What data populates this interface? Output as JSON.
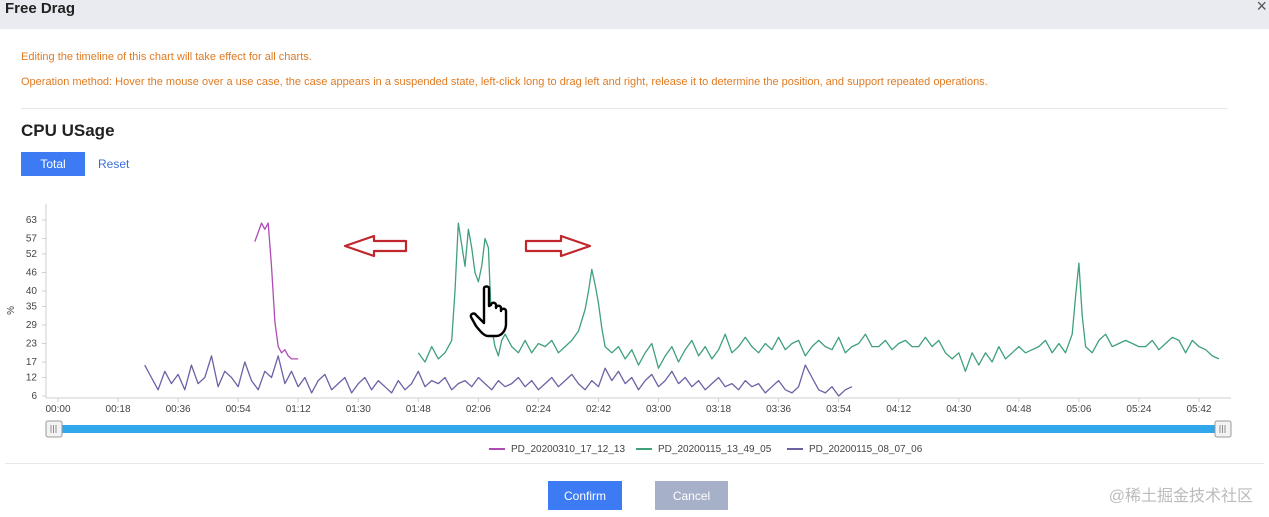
{
  "dialog": {
    "title": "Free Drag",
    "close_symbol": "×",
    "notes": [
      "Editing the timeline of this chart will take effect for all charts.",
      "Operation method: Hover the mouse over a use case, the case appears in a suspended state, left-click long to drag left and right, release it to determine the position, and support repeated operations."
    ],
    "note_color": "#e07b22",
    "section_title": "CPU USage",
    "buttons": {
      "total": "Total",
      "reset": "Reset",
      "confirm": "Confirm",
      "cancel": "Cancel"
    },
    "accent_color": "#3d7bf4",
    "watermark": "@稀土掘金技术社区"
  },
  "chart_data": {
    "type": "line",
    "title": "",
    "ylabel": "%",
    "xlabel": "",
    "yticks": [
      6,
      12,
      17,
      23,
      29,
      35,
      40,
      46,
      52,
      57,
      63
    ],
    "ylim": [
      6,
      63
    ],
    "xticks": [
      "00:00",
      "00:18",
      "00:36",
      "00:54",
      "01:12",
      "01:30",
      "01:48",
      "02:06",
      "02:24",
      "02:42",
      "03:00",
      "03:18",
      "03:36",
      "03:54",
      "04:12",
      "04:30",
      "04:48",
      "05:06",
      "05:24",
      "05:42"
    ],
    "xlim_minutes": [
      0,
      348
    ],
    "grid": false,
    "legend_position": "bottom",
    "series": [
      {
        "name": "PD_20200310_17_12_13",
        "color": "#b04bb5",
        "points": [
          [
            59,
            56
          ],
          [
            60,
            59
          ],
          [
            61,
            62
          ],
          [
            62,
            60
          ],
          [
            63,
            62
          ],
          [
            64,
            48
          ],
          [
            65,
            30
          ],
          [
            66,
            22
          ],
          [
            67,
            20
          ],
          [
            68,
            21
          ],
          [
            69,
            19
          ],
          [
            70,
            18
          ],
          [
            71,
            18
          ],
          [
            72,
            18
          ]
        ]
      },
      {
        "name": "PD_20200115_13_49_05",
        "color": "#3fa07a",
        "points": [
          [
            108,
            20
          ],
          [
            110,
            17
          ],
          [
            112,
            22
          ],
          [
            114,
            18
          ],
          [
            116,
            20
          ],
          [
            118,
            24
          ],
          [
            119,
            40
          ],
          [
            120,
            62
          ],
          [
            121,
            55
          ],
          [
            122,
            48
          ],
          [
            123,
            60
          ],
          [
            124,
            54
          ],
          [
            125,
            46
          ],
          [
            126,
            43
          ],
          [
            127,
            48
          ],
          [
            128,
            57
          ],
          [
            129,
            54
          ],
          [
            130,
            28
          ],
          [
            131,
            22
          ],
          [
            132,
            19
          ],
          [
            133,
            24
          ],
          [
            134,
            26
          ],
          [
            136,
            22
          ],
          [
            138,
            20
          ],
          [
            140,
            24
          ],
          [
            142,
            20
          ],
          [
            144,
            23
          ],
          [
            146,
            22
          ],
          [
            148,
            24
          ],
          [
            150,
            20
          ],
          [
            152,
            22
          ],
          [
            154,
            24
          ],
          [
            156,
            27
          ],
          [
            158,
            34
          ],
          [
            159,
            40
          ],
          [
            160,
            47
          ],
          [
            161,
            42
          ],
          [
            162,
            36
          ],
          [
            163,
            28
          ],
          [
            164,
            22
          ],
          [
            166,
            20
          ],
          [
            168,
            22
          ],
          [
            170,
            18
          ],
          [
            172,
            21
          ],
          [
            174,
            16
          ],
          [
            176,
            20
          ],
          [
            178,
            23
          ],
          [
            180,
            15
          ],
          [
            182,
            19
          ],
          [
            184,
            22
          ],
          [
            186,
            17
          ],
          [
            188,
            21
          ],
          [
            190,
            24
          ],
          [
            192,
            19
          ],
          [
            194,
            22
          ],
          [
            196,
            18
          ],
          [
            198,
            21
          ],
          [
            200,
            26
          ],
          [
            202,
            20
          ],
          [
            204,
            22
          ],
          [
            206,
            25
          ],
          [
            208,
            22
          ],
          [
            210,
            20
          ],
          [
            212,
            23
          ],
          [
            214,
            21
          ],
          [
            216,
            25
          ],
          [
            218,
            21
          ],
          [
            220,
            23
          ],
          [
            222,
            24
          ],
          [
            224,
            19
          ],
          [
            226,
            22
          ],
          [
            228,
            24
          ],
          [
            230,
            22
          ],
          [
            232,
            21
          ],
          [
            234,
            25
          ],
          [
            236,
            20
          ],
          [
            238,
            22
          ],
          [
            240,
            23
          ],
          [
            242,
            26
          ],
          [
            244,
            22
          ],
          [
            246,
            22
          ],
          [
            248,
            24
          ],
          [
            250,
            21
          ],
          [
            252,
            23
          ],
          [
            254,
            24
          ],
          [
            256,
            22
          ],
          [
            258,
            22
          ],
          [
            260,
            25
          ],
          [
            262,
            22
          ],
          [
            264,
            24
          ],
          [
            266,
            20
          ],
          [
            268,
            18
          ],
          [
            270,
            20
          ],
          [
            272,
            14
          ],
          [
            274,
            20
          ],
          [
            276,
            16
          ],
          [
            278,
            20
          ],
          [
            280,
            17
          ],
          [
            282,
            22
          ],
          [
            284,
            18
          ],
          [
            286,
            20
          ],
          [
            288,
            22
          ],
          [
            290,
            20
          ],
          [
            292,
            21
          ],
          [
            294,
            22
          ],
          [
            296,
            24
          ],
          [
            298,
            20
          ],
          [
            300,
            23
          ],
          [
            302,
            20
          ],
          [
            304,
            26
          ],
          [
            305,
            38
          ],
          [
            306,
            49
          ],
          [
            307,
            32
          ],
          [
            308,
            22
          ],
          [
            310,
            20
          ],
          [
            312,
            24
          ],
          [
            314,
            26
          ],
          [
            316,
            22
          ],
          [
            318,
            23
          ],
          [
            320,
            24
          ],
          [
            322,
            23
          ],
          [
            324,
            22
          ],
          [
            326,
            22
          ],
          [
            328,
            24
          ],
          [
            330,
            21
          ],
          [
            332,
            23
          ],
          [
            334,
            25
          ],
          [
            336,
            24
          ],
          [
            338,
            20
          ],
          [
            340,
            24
          ],
          [
            342,
            22
          ],
          [
            344,
            21
          ],
          [
            346,
            19
          ],
          [
            348,
            18
          ]
        ]
      },
      {
        "name": "PD_20200115_08_07_06",
        "color": "#6a62a5",
        "points": [
          [
            26,
            16
          ],
          [
            28,
            12
          ],
          [
            30,
            8
          ],
          [
            32,
            14
          ],
          [
            34,
            10
          ],
          [
            36,
            13
          ],
          [
            38,
            8
          ],
          [
            40,
            16
          ],
          [
            42,
            10
          ],
          [
            44,
            12
          ],
          [
            46,
            19
          ],
          [
            48,
            9
          ],
          [
            50,
            14
          ],
          [
            52,
            12
          ],
          [
            54,
            9
          ],
          [
            56,
            17
          ],
          [
            58,
            11
          ],
          [
            60,
            8
          ],
          [
            62,
            14
          ],
          [
            64,
            12
          ],
          [
            66,
            19
          ],
          [
            68,
            10
          ],
          [
            70,
            14
          ],
          [
            72,
            9
          ],
          [
            74,
            12
          ],
          [
            76,
            7
          ],
          [
            78,
            11
          ],
          [
            80,
            13
          ],
          [
            82,
            8
          ],
          [
            84,
            10
          ],
          [
            86,
            12
          ],
          [
            88,
            7
          ],
          [
            90,
            10
          ],
          [
            92,
            12
          ],
          [
            94,
            8
          ],
          [
            96,
            11
          ],
          [
            98,
            9
          ],
          [
            100,
            7
          ],
          [
            102,
            11
          ],
          [
            104,
            8
          ],
          [
            106,
            10
          ],
          [
            108,
            14
          ],
          [
            110,
            9
          ],
          [
            112,
            11
          ],
          [
            114,
            10
          ],
          [
            116,
            12
          ],
          [
            118,
            8
          ],
          [
            120,
            10
          ],
          [
            122,
            11
          ],
          [
            124,
            9
          ],
          [
            126,
            12
          ],
          [
            128,
            10
          ],
          [
            130,
            8
          ],
          [
            132,
            11
          ],
          [
            134,
            9
          ],
          [
            136,
            10
          ],
          [
            138,
            12
          ],
          [
            140,
            9
          ],
          [
            142,
            11
          ],
          [
            144,
            8
          ],
          [
            146,
            10
          ],
          [
            148,
            12
          ],
          [
            150,
            9
          ],
          [
            152,
            11
          ],
          [
            154,
            13
          ],
          [
            156,
            10
          ],
          [
            158,
            8
          ],
          [
            160,
            11
          ],
          [
            162,
            9
          ],
          [
            164,
            15
          ],
          [
            166,
            11
          ],
          [
            168,
            14
          ],
          [
            170,
            10
          ],
          [
            172,
            12
          ],
          [
            174,
            8
          ],
          [
            176,
            11
          ],
          [
            178,
            13
          ],
          [
            180,
            9
          ],
          [
            182,
            11
          ],
          [
            184,
            14
          ],
          [
            186,
            10
          ],
          [
            188,
            12
          ],
          [
            190,
            9
          ],
          [
            192,
            11
          ],
          [
            194,
            8
          ],
          [
            196,
            10
          ],
          [
            198,
            12
          ],
          [
            200,
            9
          ],
          [
            202,
            10
          ],
          [
            204,
            8
          ],
          [
            206,
            11
          ],
          [
            208,
            9
          ],
          [
            210,
            10
          ],
          [
            212,
            7
          ],
          [
            214,
            9
          ],
          [
            216,
            11
          ],
          [
            218,
            8
          ],
          [
            220,
            7
          ],
          [
            222,
            9
          ],
          [
            224,
            16
          ],
          [
            226,
            12
          ],
          [
            228,
            8
          ],
          [
            230,
            7
          ],
          [
            232,
            9
          ],
          [
            234,
            6
          ],
          [
            236,
            8
          ],
          [
            238,
            9
          ]
        ]
      }
    ]
  }
}
